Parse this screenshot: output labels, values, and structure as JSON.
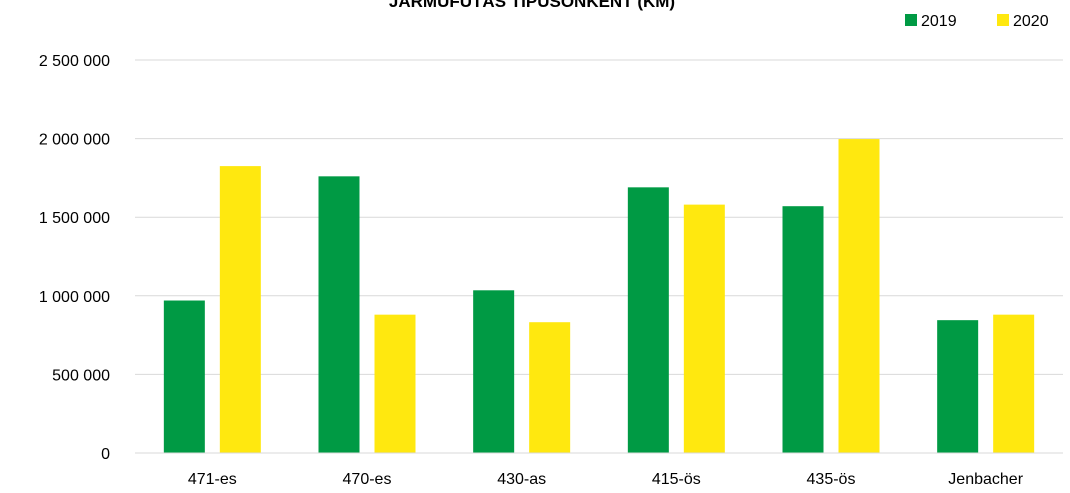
{
  "chart_data": {
    "type": "bar",
    "title": "JÁRMŰFUTÁS TÍPUSONKÉNT (KM)",
    "categories": [
      "471-es",
      "470-es",
      "430-as",
      "415-ös",
      "435-ös",
      "Jenbacher"
    ],
    "series": [
      {
        "name": "2019",
        "color": "#009a44",
        "values": [
          970000,
          1760000,
          1035000,
          1690000,
          1570000,
          845000
        ]
      },
      {
        "name": "2020",
        "color": "#ffe80f",
        "values": [
          1825000,
          880000,
          832000,
          1580000,
          1997000,
          880000
        ]
      }
    ],
    "ylim": [
      0,
      2500000
    ],
    "yticks": [
      0,
      500000,
      1000000,
      1500000,
      2000000,
      2500000
    ],
    "ytick_labels": [
      "0",
      "500 000",
      "1 000 000",
      "1 500 000",
      "2 000 000",
      "2 500 000"
    ],
    "xlabel": "",
    "ylabel": "",
    "grid": true,
    "legend_position": "top-right"
  }
}
